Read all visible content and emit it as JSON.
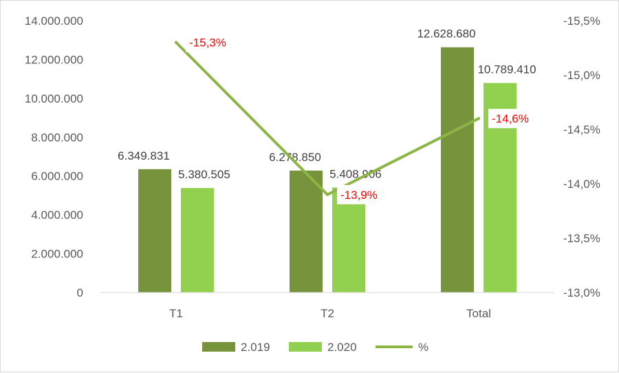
{
  "chart_data": {
    "type": "bar",
    "categories": [
      "T1",
      "T2",
      "Total"
    ],
    "series": [
      {
        "name": "2.019",
        "type": "bar",
        "axis": "left",
        "color": "#77933c",
        "values": [
          6349831,
          6278850,
          12628680
        ],
        "labels": [
          "6.349.831",
          "6.278.850",
          "12.628.680"
        ]
      },
      {
        "name": "2.020",
        "type": "bar",
        "axis": "left",
        "color": "#92d050",
        "values": [
          5380505,
          5408906,
          10789410
        ],
        "labels": [
          "5.380.505",
          "5.408.906",
          "10.789.410"
        ]
      },
      {
        "name": "%",
        "type": "line",
        "axis": "right",
        "color": "#8db545",
        "values": [
          -15.3,
          -13.9,
          -14.6
        ],
        "labels": [
          "-15,3%",
          "-13,9%",
          "-14,6%"
        ],
        "label_color": "#ff0000"
      }
    ],
    "y_left": {
      "min": 0,
      "max": 14000000,
      "ticks": [
        0,
        2000000,
        4000000,
        6000000,
        8000000,
        10000000,
        12000000,
        14000000
      ],
      "tick_labels": [
        "0",
        "2.000.000",
        "4.000.000",
        "6.000.000",
        "8.000.000",
        "10.000.000",
        "12.000.000",
        "14.000.000"
      ]
    },
    "y_right": {
      "min": -13.0,
      "max": -15.5,
      "reversed": true,
      "ticks": [
        -13.0,
        -13.5,
        -14.0,
        -14.5,
        -15.0,
        -15.5
      ],
      "tick_labels": [
        "-13,0%",
        "-13,5%",
        "-14,0%",
        "-14,5%",
        "-15,0%",
        "-15,5%"
      ]
    },
    "grid": false,
    "legend_position": "bottom"
  }
}
